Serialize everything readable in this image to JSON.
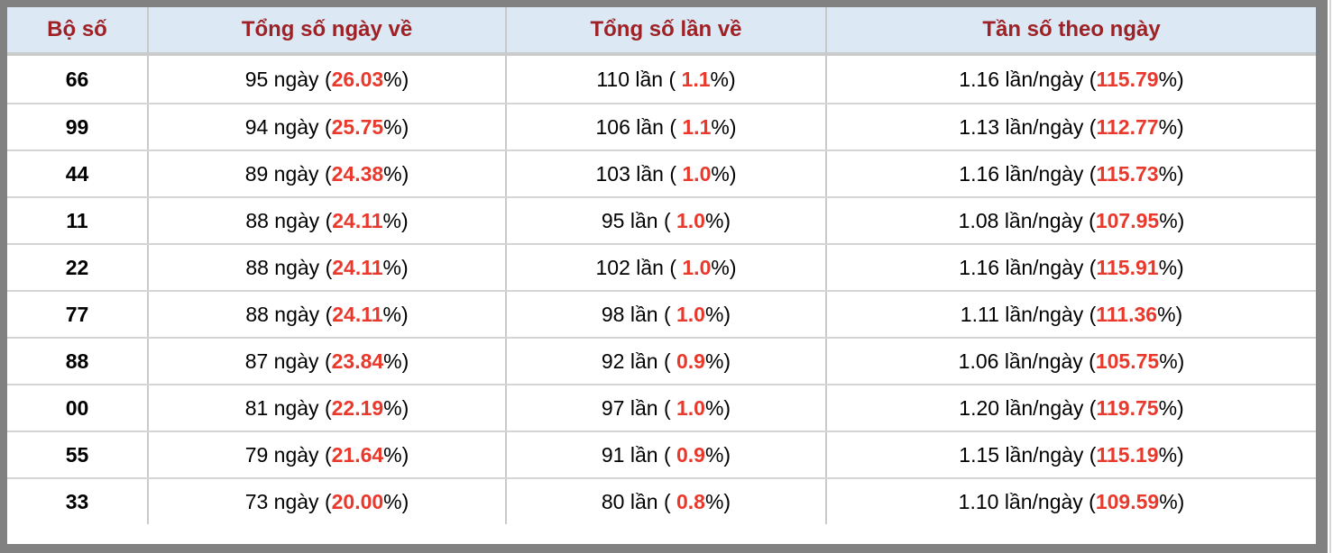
{
  "colors": {
    "header_background": "#dce9f5",
    "header_text": "#9d2125",
    "highlight_red": "#e8392c",
    "frame_gray": "#818181"
  },
  "table": {
    "headers": [
      "Bộ số",
      "Tổng số ngày về",
      "Tổng số lần về",
      "Tần số theo ngày"
    ],
    "rows": [
      {
        "pair": "66",
        "days": {
          "pre": "95 ngày (",
          "red": "26.03",
          "post": "%)"
        },
        "times": {
          "pre": "110 lần ( ",
          "red": "1.1",
          "post": "%)"
        },
        "freq": {
          "pre": "1.16 lần/ngày (",
          "red": "115.79",
          "post": "%)"
        }
      },
      {
        "pair": "99",
        "days": {
          "pre": "94 ngày (",
          "red": "25.75",
          "post": "%)"
        },
        "times": {
          "pre": "106 lần ( ",
          "red": "1.1",
          "post": "%)"
        },
        "freq": {
          "pre": "1.13 lần/ngày (",
          "red": "112.77",
          "post": "%)"
        }
      },
      {
        "pair": "44",
        "days": {
          "pre": "89 ngày (",
          "red": "24.38",
          "post": "%)"
        },
        "times": {
          "pre": "103 lần ( ",
          "red": "1.0",
          "post": "%)"
        },
        "freq": {
          "pre": "1.16 lần/ngày (",
          "red": "115.73",
          "post": "%)"
        }
      },
      {
        "pair": "11",
        "days": {
          "pre": "88 ngày (",
          "red": "24.11",
          "post": "%)"
        },
        "times": {
          "pre": "95 lần ( ",
          "red": "1.0",
          "post": "%)"
        },
        "freq": {
          "pre": "1.08 lần/ngày (",
          "red": "107.95",
          "post": "%)"
        }
      },
      {
        "pair": "22",
        "days": {
          "pre": "88 ngày (",
          "red": "24.11",
          "post": "%)"
        },
        "times": {
          "pre": "102 lần ( ",
          "red": "1.0",
          "post": "%)"
        },
        "freq": {
          "pre": "1.16 lần/ngày (",
          "red": "115.91",
          "post": "%)"
        }
      },
      {
        "pair": "77",
        "days": {
          "pre": "88 ngày (",
          "red": "24.11",
          "post": "%)"
        },
        "times": {
          "pre": "98 lần ( ",
          "red": "1.0",
          "post": "%)"
        },
        "freq": {
          "pre": "1.11 lần/ngày (",
          "red": "111.36",
          "post": "%)"
        }
      },
      {
        "pair": "88",
        "days": {
          "pre": "87 ngày (",
          "red": "23.84",
          "post": "%)"
        },
        "times": {
          "pre": "92 lần ( ",
          "red": "0.9",
          "post": "%)"
        },
        "freq": {
          "pre": "1.06 lần/ngày (",
          "red": "105.75",
          "post": "%)"
        }
      },
      {
        "pair": "00",
        "days": {
          "pre": "81 ngày (",
          "red": "22.19",
          "post": "%)"
        },
        "times": {
          "pre": "97 lần ( ",
          "red": "1.0",
          "post": "%)"
        },
        "freq": {
          "pre": "1.20 lần/ngày (",
          "red": "119.75",
          "post": "%)"
        }
      },
      {
        "pair": "55",
        "days": {
          "pre": "79 ngày (",
          "red": "21.64",
          "post": "%)"
        },
        "times": {
          "pre": "91 lần ( ",
          "red": "0.9",
          "post": "%)"
        },
        "freq": {
          "pre": "1.15 lần/ngày (",
          "red": "115.19",
          "post": "%)"
        }
      },
      {
        "pair": "33",
        "days": {
          "pre": "73 ngày (",
          "red": "20.00",
          "post": "%)"
        },
        "times": {
          "pre": "80 lần ( ",
          "red": "0.8",
          "post": "%)"
        },
        "freq": {
          "pre": "1.10 lần/ngày (",
          "red": "109.59",
          "post": "%)"
        }
      }
    ]
  }
}
